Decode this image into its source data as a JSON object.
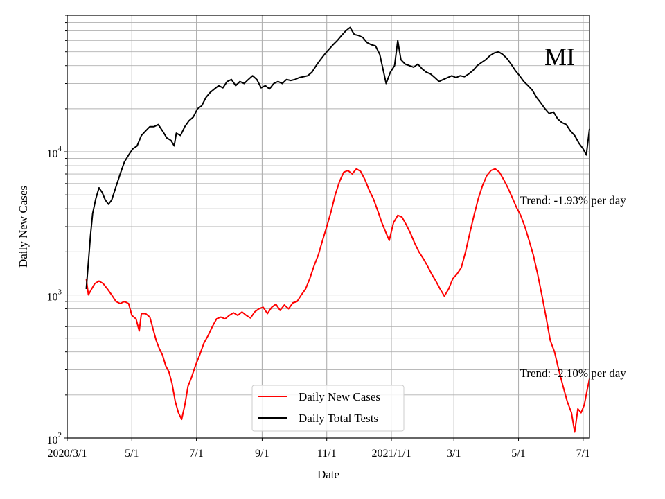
{
  "chart_data": {
    "type": "line",
    "title": "",
    "xlabel": "Date",
    "ylabel": "Daily New Cases",
    "yscale": "log",
    "ylim": [
      100,
      90000
    ],
    "xlim": [
      "2020-03-01",
      "2021-07-07"
    ],
    "grid": true,
    "legend_position": "lower-center",
    "state_label": "MI",
    "x_ticks": [
      {
        "date": "2020-03-01",
        "label": "2020/3/1"
      },
      {
        "date": "2020-05-01",
        "label": "5/1"
      },
      {
        "date": "2020-07-01",
        "label": "7/1"
      },
      {
        "date": "2020-09-01",
        "label": "9/1"
      },
      {
        "date": "2020-11-01",
        "label": "11/1"
      },
      {
        "date": "2021-01-01",
        "label": "2021/1/1"
      },
      {
        "date": "2021-03-01",
        "label": "3/1"
      },
      {
        "date": "2021-05-01",
        "label": "5/1"
      },
      {
        "date": "2021-07-01",
        "label": "7/1"
      }
    ],
    "y_ticks": [
      {
        "value": 100,
        "base": "10",
        "exp": "2"
      },
      {
        "value": 1000,
        "base": "10",
        "exp": "3"
      },
      {
        "value": 10000,
        "base": "10",
        "exp": "4"
      }
    ],
    "annotations": [
      {
        "text": "Trend: -1.93% per day",
        "date": "2021-05-01",
        "value": 4600
      },
      {
        "text": "Trend: -2.10% per day",
        "date": "2021-05-01",
        "value": 285
      }
    ],
    "series": [
      {
        "name": "Daily New Cases",
        "color": "#ff0000",
        "points": [
          [
            "2020-03-19",
            1300
          ],
          [
            "2020-03-21",
            1000
          ],
          [
            "2020-03-24",
            1100
          ],
          [
            "2020-03-27",
            1200
          ],
          [
            "2020-03-31",
            1250
          ],
          [
            "2020-04-04",
            1200
          ],
          [
            "2020-04-08",
            1100
          ],
          [
            "2020-04-12",
            1000
          ],
          [
            "2020-04-16",
            900
          ],
          [
            "2020-04-20",
            870
          ],
          [
            "2020-04-24",
            900
          ],
          [
            "2020-04-28",
            870
          ],
          [
            "2020-05-01",
            720
          ],
          [
            "2020-05-05",
            680
          ],
          [
            "2020-05-08",
            560
          ],
          [
            "2020-05-10",
            740
          ],
          [
            "2020-05-14",
            740
          ],
          [
            "2020-05-18",
            700
          ],
          [
            "2020-05-21",
            580
          ],
          [
            "2020-05-24",
            480
          ],
          [
            "2020-05-27",
            420
          ],
          [
            "2020-05-30",
            380
          ],
          [
            "2020-06-02",
            320
          ],
          [
            "2020-06-05",
            290
          ],
          [
            "2020-06-08",
            240
          ],
          [
            "2020-06-11",
            180
          ],
          [
            "2020-06-14",
            150
          ],
          [
            "2020-06-17",
            135
          ],
          [
            "2020-06-20",
            170
          ],
          [
            "2020-06-23",
            230
          ],
          [
            "2020-06-26",
            260
          ],
          [
            "2020-06-30",
            320
          ],
          [
            "2020-07-04",
            380
          ],
          [
            "2020-07-08",
            460
          ],
          [
            "2020-07-12",
            520
          ],
          [
            "2020-07-16",
            600
          ],
          [
            "2020-07-20",
            680
          ],
          [
            "2020-07-24",
            700
          ],
          [
            "2020-07-28",
            680
          ],
          [
            "2020-08-01",
            720
          ],
          [
            "2020-08-05",
            750
          ],
          [
            "2020-08-09",
            720
          ],
          [
            "2020-08-13",
            760
          ],
          [
            "2020-08-17",
            720
          ],
          [
            "2020-08-21",
            690
          ],
          [
            "2020-08-25",
            760
          ],
          [
            "2020-08-29",
            800
          ],
          [
            "2020-09-02",
            820
          ],
          [
            "2020-09-06",
            740
          ],
          [
            "2020-09-10",
            820
          ],
          [
            "2020-09-14",
            860
          ],
          [
            "2020-09-18",
            780
          ],
          [
            "2020-09-22",
            850
          ],
          [
            "2020-09-26",
            800
          ],
          [
            "2020-09-30",
            880
          ],
          [
            "2020-10-04",
            900
          ],
          [
            "2020-10-08",
            1000
          ],
          [
            "2020-10-12",
            1100
          ],
          [
            "2020-10-16",
            1300
          ],
          [
            "2020-10-20",
            1600
          ],
          [
            "2020-10-24",
            1900
          ],
          [
            "2020-10-28",
            2400
          ],
          [
            "2020-11-01",
            3000
          ],
          [
            "2020-11-05",
            3800
          ],
          [
            "2020-11-09",
            5000
          ],
          [
            "2020-11-13",
            6200
          ],
          [
            "2020-11-17",
            7200
          ],
          [
            "2020-11-21",
            7400
          ],
          [
            "2020-11-25",
            7000
          ],
          [
            "2020-11-29",
            7600
          ],
          [
            "2020-12-03",
            7300
          ],
          [
            "2020-12-07",
            6400
          ],
          [
            "2020-12-11",
            5400
          ],
          [
            "2020-12-15",
            4700
          ],
          [
            "2020-12-19",
            3900
          ],
          [
            "2020-12-23",
            3200
          ],
          [
            "2020-12-27",
            2700
          ],
          [
            "2020-12-30",
            2400
          ],
          [
            "2021-01-03",
            3200
          ],
          [
            "2021-01-07",
            3600
          ],
          [
            "2021-01-11",
            3500
          ],
          [
            "2021-01-15",
            3100
          ],
          [
            "2021-01-19",
            2700
          ],
          [
            "2021-01-23",
            2300
          ],
          [
            "2021-01-27",
            2000
          ],
          [
            "2021-01-31",
            1800
          ],
          [
            "2021-02-04",
            1600
          ],
          [
            "2021-02-08",
            1400
          ],
          [
            "2021-02-12",
            1250
          ],
          [
            "2021-02-16",
            1100
          ],
          [
            "2021-02-20",
            980
          ],
          [
            "2021-02-24",
            1100
          ],
          [
            "2021-02-28",
            1300
          ],
          [
            "2021-03-04",
            1400
          ],
          [
            "2021-03-08",
            1550
          ],
          [
            "2021-03-12",
            2000
          ],
          [
            "2021-03-16",
            2700
          ],
          [
            "2021-03-20",
            3600
          ],
          [
            "2021-03-24",
            4700
          ],
          [
            "2021-03-28",
            5800
          ],
          [
            "2021-04-01",
            6800
          ],
          [
            "2021-04-05",
            7400
          ],
          [
            "2021-04-09",
            7600
          ],
          [
            "2021-04-13",
            7200
          ],
          [
            "2021-04-17",
            6400
          ],
          [
            "2021-04-21",
            5600
          ],
          [
            "2021-04-25",
            4800
          ],
          [
            "2021-04-29",
            4100
          ],
          [
            "2021-05-03",
            3600
          ],
          [
            "2021-05-07",
            3000
          ],
          [
            "2021-05-11",
            2400
          ],
          [
            "2021-05-15",
            1900
          ],
          [
            "2021-05-19",
            1400
          ],
          [
            "2021-05-23",
            1000
          ],
          [
            "2021-05-27",
            700
          ],
          [
            "2021-05-31",
            480
          ],
          [
            "2021-06-04",
            400
          ],
          [
            "2021-06-08",
            300
          ],
          [
            "2021-06-12",
            230
          ],
          [
            "2021-06-16",
            180
          ],
          [
            "2021-06-20",
            150
          ],
          [
            "2021-06-23",
            110
          ],
          [
            "2021-06-26",
            160
          ],
          [
            "2021-06-29",
            150
          ],
          [
            "2021-07-02",
            170
          ],
          [
            "2021-07-05",
            220
          ],
          [
            "2021-07-07",
            260
          ]
        ]
      },
      {
        "name": "Daily Total Tests",
        "color": "#000000",
        "points": [
          [
            "2020-03-19",
            1100
          ],
          [
            "2020-03-21",
            1700
          ],
          [
            "2020-03-23",
            2600
          ],
          [
            "2020-03-25",
            3700
          ],
          [
            "2020-03-28",
            4700
          ],
          [
            "2020-03-31",
            5600
          ],
          [
            "2020-04-03",
            5200
          ],
          [
            "2020-04-06",
            4600
          ],
          [
            "2020-04-09",
            4300
          ],
          [
            "2020-04-12",
            4600
          ],
          [
            "2020-04-16",
            5700
          ],
          [
            "2020-04-20",
            7000
          ],
          [
            "2020-04-24",
            8500
          ],
          [
            "2020-04-28",
            9500
          ],
          [
            "2020-05-02",
            10500
          ],
          [
            "2020-05-06",
            11000
          ],
          [
            "2020-05-10",
            13000
          ],
          [
            "2020-05-14",
            14000
          ],
          [
            "2020-05-18",
            15000
          ],
          [
            "2020-05-22",
            15000
          ],
          [
            "2020-05-26",
            15500
          ],
          [
            "2020-05-30",
            14000
          ],
          [
            "2020-06-03",
            12500
          ],
          [
            "2020-06-07",
            12000
          ],
          [
            "2020-06-10",
            11000
          ],
          [
            "2020-06-12",
            13500
          ],
          [
            "2020-06-16",
            13000
          ],
          [
            "2020-06-20",
            15000
          ],
          [
            "2020-06-24",
            16500
          ],
          [
            "2020-06-28",
            17500
          ],
          [
            "2020-07-02",
            20000
          ],
          [
            "2020-07-06",
            21000
          ],
          [
            "2020-07-10",
            24000
          ],
          [
            "2020-07-14",
            26000
          ],
          [
            "2020-07-18",
            27500
          ],
          [
            "2020-07-22",
            29000
          ],
          [
            "2020-07-26",
            28000
          ],
          [
            "2020-07-30",
            31000
          ],
          [
            "2020-08-03",
            32000
          ],
          [
            "2020-08-07",
            29000
          ],
          [
            "2020-08-11",
            31000
          ],
          [
            "2020-08-15",
            30000
          ],
          [
            "2020-08-19",
            32000
          ],
          [
            "2020-08-23",
            34000
          ],
          [
            "2020-08-27",
            32000
          ],
          [
            "2020-08-31",
            28000
          ],
          [
            "2020-09-04",
            29000
          ],
          [
            "2020-09-08",
            27500
          ],
          [
            "2020-09-12",
            30000
          ],
          [
            "2020-09-16",
            31000
          ],
          [
            "2020-09-20",
            30000
          ],
          [
            "2020-09-24",
            32000
          ],
          [
            "2020-09-28",
            31500
          ],
          [
            "2020-10-02",
            32000
          ],
          [
            "2020-10-06",
            33000
          ],
          [
            "2020-10-10",
            33500
          ],
          [
            "2020-10-14",
            34000
          ],
          [
            "2020-10-18",
            36000
          ],
          [
            "2020-10-22",
            40000
          ],
          [
            "2020-10-26",
            44000
          ],
          [
            "2020-10-30",
            48000
          ],
          [
            "2020-11-03",
            52000
          ],
          [
            "2020-11-07",
            56000
          ],
          [
            "2020-11-11",
            60000
          ],
          [
            "2020-11-15",
            65000
          ],
          [
            "2020-11-19",
            70000
          ],
          [
            "2020-11-23",
            74000
          ],
          [
            "2020-11-27",
            66000
          ],
          [
            "2020-12-01",
            65000
          ],
          [
            "2020-12-05",
            63000
          ],
          [
            "2020-12-09",
            58000
          ],
          [
            "2020-12-13",
            56000
          ],
          [
            "2020-12-17",
            55000
          ],
          [
            "2020-12-21",
            48000
          ],
          [
            "2020-12-24",
            38000
          ],
          [
            "2020-12-27",
            30000
          ],
          [
            "2020-12-31",
            36000
          ],
          [
            "2021-01-04",
            40000
          ],
          [
            "2021-01-07",
            60000
          ],
          [
            "2021-01-10",
            44000
          ],
          [
            "2021-01-14",
            41000
          ],
          [
            "2021-01-18",
            40000
          ],
          [
            "2021-01-22",
            39000
          ],
          [
            "2021-01-26",
            41000
          ],
          [
            "2021-01-30",
            38000
          ],
          [
            "2021-02-03",
            36000
          ],
          [
            "2021-02-07",
            35000
          ],
          [
            "2021-02-11",
            33000
          ],
          [
            "2021-02-15",
            31000
          ],
          [
            "2021-02-19",
            32000
          ],
          [
            "2021-02-23",
            33000
          ],
          [
            "2021-02-27",
            34000
          ],
          [
            "2021-03-03",
            33000
          ],
          [
            "2021-03-07",
            34000
          ],
          [
            "2021-03-11",
            33500
          ],
          [
            "2021-03-15",
            35000
          ],
          [
            "2021-03-19",
            37000
          ],
          [
            "2021-03-23",
            40000
          ],
          [
            "2021-03-27",
            42000
          ],
          [
            "2021-03-31",
            44000
          ],
          [
            "2021-04-04",
            47000
          ],
          [
            "2021-04-08",
            49000
          ],
          [
            "2021-04-12",
            50000
          ],
          [
            "2021-04-16",
            48000
          ],
          [
            "2021-04-20",
            45000
          ],
          [
            "2021-04-24",
            41000
          ],
          [
            "2021-04-28",
            37000
          ],
          [
            "2021-05-02",
            34000
          ],
          [
            "2021-05-06",
            31000
          ],
          [
            "2021-05-10",
            29000
          ],
          [
            "2021-05-14",
            27000
          ],
          [
            "2021-05-18",
            24000
          ],
          [
            "2021-05-22",
            22000
          ],
          [
            "2021-05-26",
            20000
          ],
          [
            "2021-05-30",
            18500
          ],
          [
            "2021-06-03",
            19000
          ],
          [
            "2021-06-07",
            17000
          ],
          [
            "2021-06-11",
            16000
          ],
          [
            "2021-06-15",
            15500
          ],
          [
            "2021-06-19",
            14000
          ],
          [
            "2021-06-23",
            13000
          ],
          [
            "2021-06-27",
            11500
          ],
          [
            "2021-07-01",
            10500
          ],
          [
            "2021-07-04",
            9500
          ],
          [
            "2021-07-07",
            14500
          ]
        ]
      }
    ]
  }
}
